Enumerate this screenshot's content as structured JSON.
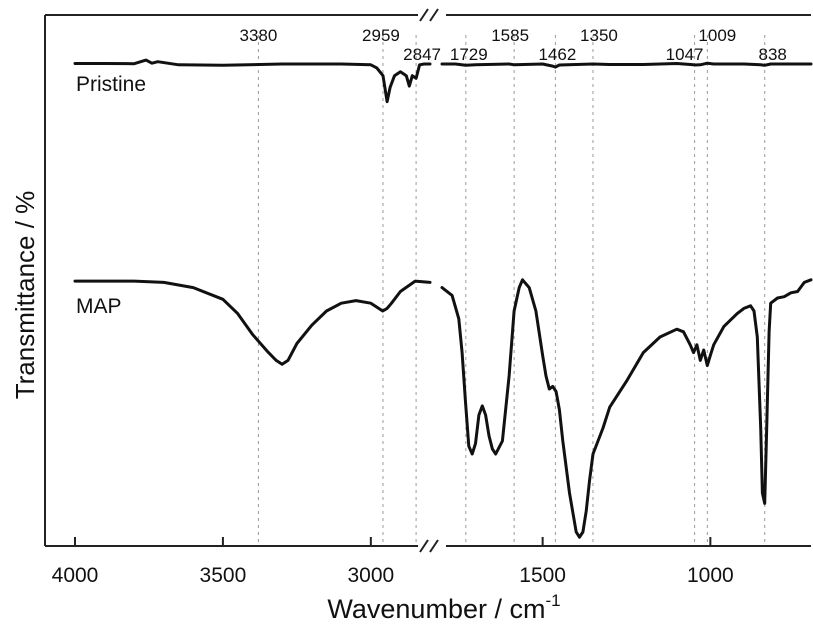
{
  "chart_data": {
    "type": "line",
    "title": "",
    "xlabel_main": "Wavenumber / cm",
    "xlabel_sup": "-1",
    "ylabel": "Transmittance / %",
    "x_axis_break": true,
    "segments": [
      {
        "xlim": [
          4000,
          2800
        ],
        "ticks": [
          4000,
          3500,
          3000
        ]
      },
      {
        "xlim": [
          1800,
          700
        ],
        "ticks": [
          1500,
          1000
        ]
      }
    ],
    "reference_lines": [
      3380,
      2959,
      2847,
      1729,
      1585,
      1462,
      1350,
      1047,
      1009,
      838
    ],
    "peak_labels": [
      "3380",
      "2959",
      "2847",
      "1729",
      "1585",
      "1462",
      "1350",
      "1047",
      "1009",
      "838"
    ],
    "series": [
      {
        "name": "Pristine",
        "x": [
          4000,
          3900,
          3800,
          3760,
          3740,
          3720,
          3650,
          3500,
          3300,
          3100,
          3000,
          2980,
          2959,
          2945,
          2935,
          2920,
          2900,
          2880,
          2870,
          2860,
          2847,
          2835,
          2820,
          2800,
          1800,
          1760,
          1729,
          1700,
          1600,
          1585,
          1500,
          1470,
          1462,
          1450,
          1350,
          1300,
          1200,
          1100,
          1050,
          1047,
          1030,
          1009,
          990,
          900,
          850,
          838,
          820,
          800,
          750,
          700
        ],
        "y": [
          0.2,
          0.2,
          0.1,
          1.5,
          0.3,
          0.9,
          -0.3,
          -0.5,
          0.0,
          0.0,
          -0.3,
          -1.5,
          -4.5,
          -14.5,
          -9.0,
          -4.5,
          -3.0,
          -4.5,
          -8.5,
          -4.5,
          -5.5,
          -0.3,
          0.0,
          0.0,
          0.0,
          0.0,
          -0.5,
          -0.3,
          0.0,
          -0.3,
          0.0,
          -0.8,
          -1.2,
          -0.4,
          0.0,
          -0.2,
          -0.2,
          0.2,
          -0.3,
          -0.4,
          -0.3,
          0.3,
          0.0,
          0.0,
          -0.3,
          -0.5,
          0.0,
          0.0,
          0.0,
          0.0
        ]
      },
      {
        "name": "MAP",
        "x": [
          4000,
          3800,
          3700,
          3600,
          3500,
          3450,
          3400,
          3350,
          3320,
          3300,
          3280,
          3250,
          3200,
          3150,
          3100,
          3050,
          3000,
          2980,
          2960,
          2945,
          2930,
          2900,
          2850,
          2800,
          1800,
          1770,
          1750,
          1740,
          1730,
          1720,
          1710,
          1700,
          1690,
          1680,
          1670,
          1660,
          1650,
          1640,
          1620,
          1600,
          1585,
          1570,
          1560,
          1540,
          1520,
          1500,
          1490,
          1480,
          1470,
          1460,
          1450,
          1440,
          1420,
          1400,
          1390,
          1380,
          1370,
          1360,
          1350,
          1320,
          1300,
          1250,
          1200,
          1150,
          1100,
          1080,
          1060,
          1050,
          1040,
          1030,
          1020,
          1009,
          1000,
          990,
          960,
          920,
          900,
          880,
          870,
          860,
          850,
          845,
          838,
          832,
          825,
          820,
          800,
          780,
          760,
          740,
          720,
          700
        ],
        "y": [
          -83.5,
          -83.5,
          -84.0,
          -86.0,
          -90.5,
          -96.0,
          -104.0,
          -110.5,
          -114.0,
          -115.5,
          -114.0,
          -107.5,
          -100.5,
          -95.0,
          -92.0,
          -91.0,
          -92.0,
          -93.5,
          -95.0,
          -94.0,
          -92.0,
          -87.5,
          -83.5,
          -84.0,
          -86.0,
          -89.0,
          -98.0,
          -111.0,
          -130.0,
          -147.0,
          -150.0,
          -146.0,
          -135.0,
          -131.5,
          -135.0,
          -143.0,
          -148.0,
          -150.0,
          -145.0,
          -120.0,
          -95.0,
          -86.0,
          -83.0,
          -86.0,
          -95.0,
          -112.0,
          -120.0,
          -125.0,
          -124.0,
          -126.0,
          -133.0,
          -145.0,
          -165.0,
          -180.0,
          -182.0,
          -180.0,
          -172.0,
          -160.0,
          -150.0,
          -140.0,
          -132.0,
          -122.0,
          -111.0,
          -105.0,
          -102.0,
          -103.0,
          -108.0,
          -111.0,
          -108.0,
          -114.0,
          -110.0,
          -116.0,
          -112.0,
          -108.0,
          -101.0,
          -96.0,
          -94.0,
          -93.0,
          -95.0,
          -105.0,
          -140.0,
          -165.0,
          -169.0,
          -140.0,
          -103.0,
          -92.0,
          -90.0,
          -89.5,
          -88.0,
          -87.5,
          -84.0,
          -83.0
        ]
      }
    ]
  }
}
